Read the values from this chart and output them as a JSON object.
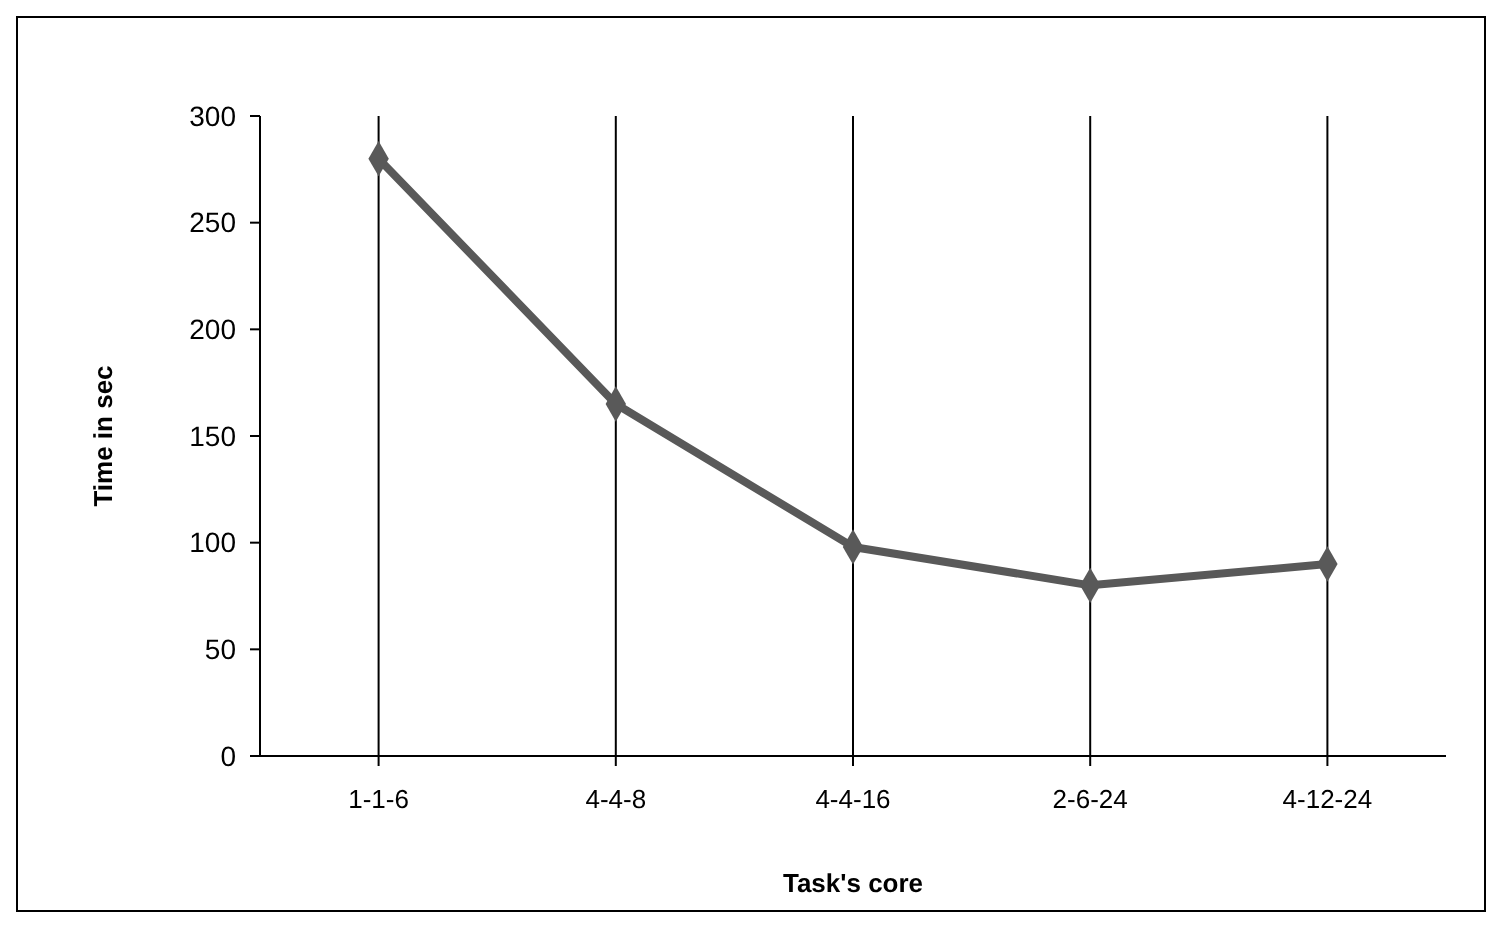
{
  "chart_data": {
    "type": "line",
    "xlabel": "Task's core",
    "ylabel": "Time in sec",
    "categories": [
      "1-1-6",
      "4-4-8",
      "4-4-16",
      "2-6-24",
      "4-12-24"
    ],
    "series": [
      {
        "color": "#595959",
        "values": [
          280,
          165,
          98,
          80,
          90
        ]
      }
    ],
    "ylim": [
      0,
      300
    ],
    "yticks": [
      0,
      50,
      100,
      150,
      200,
      250,
      300
    ],
    "grid": "x",
    "marker": "diamond"
  }
}
